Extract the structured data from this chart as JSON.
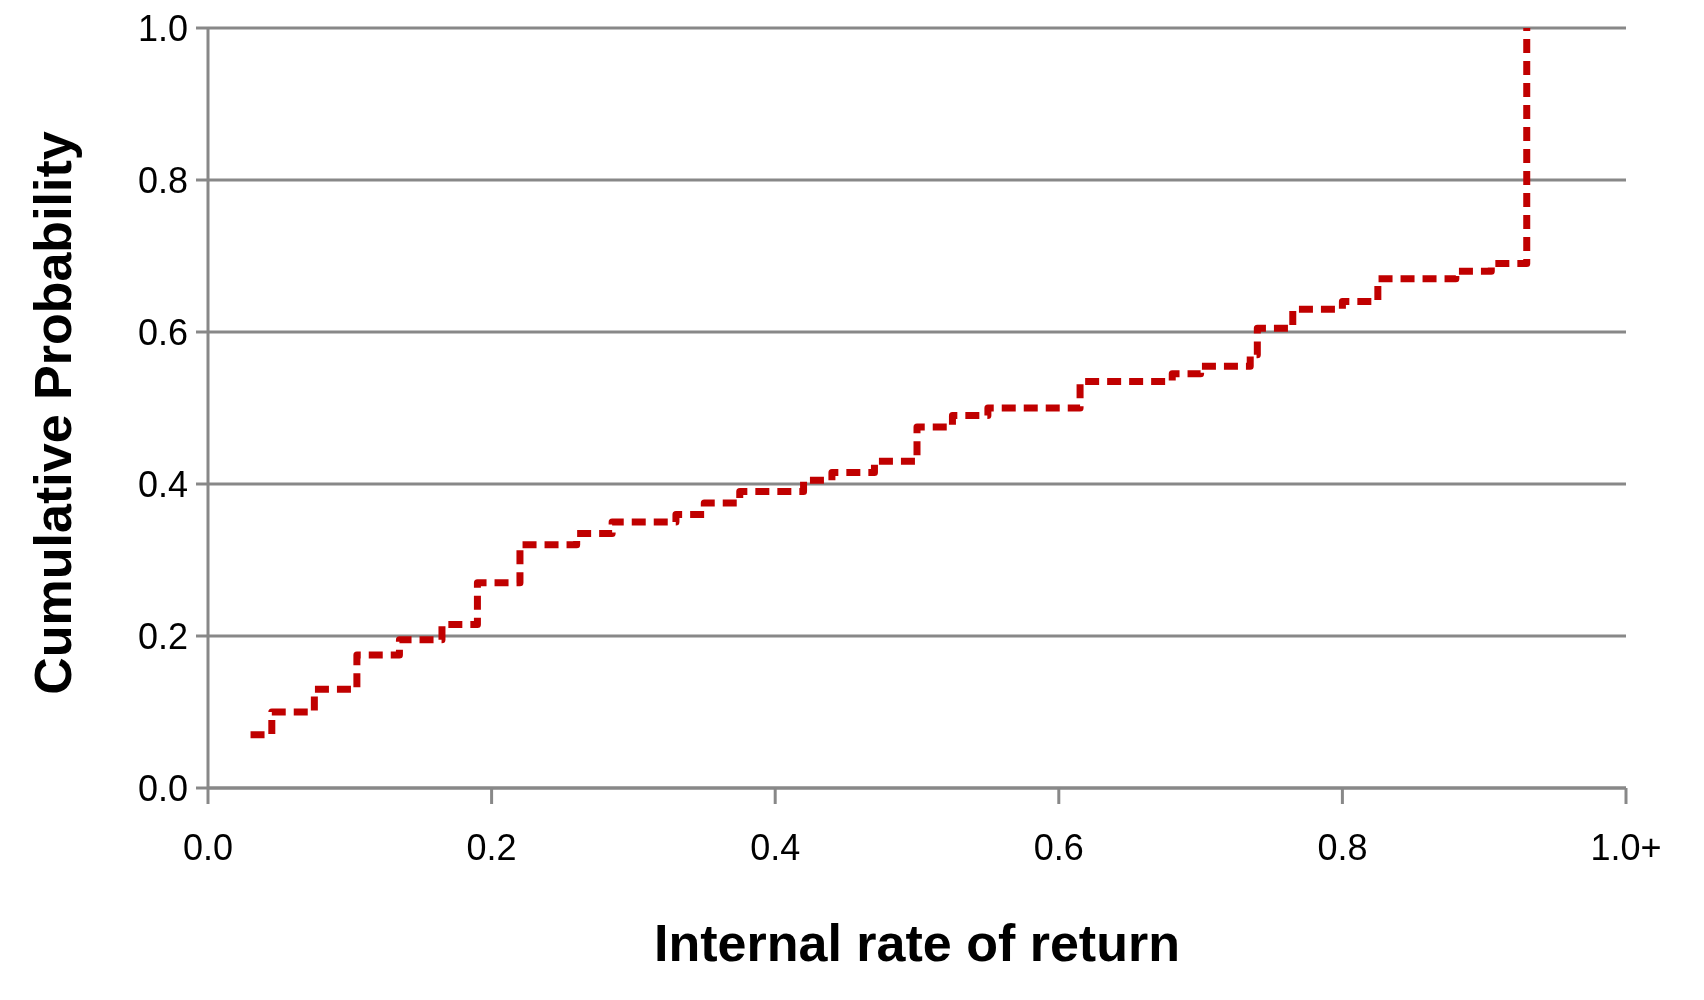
{
  "chart_data": {
    "type": "step",
    "xlabel": "Internal rate of return",
    "ylabel": "Cumulative Probability",
    "x": [
      0.03,
      0.045,
      0.075,
      0.105,
      0.135,
      0.165,
      0.19,
      0.22,
      0.26,
      0.285,
      0.33,
      0.35,
      0.375,
      0.42,
      0.44,
      0.47,
      0.5,
      0.525,
      0.55,
      0.615,
      0.68,
      0.7,
      0.735,
      0.74,
      0.765,
      0.8,
      0.825,
      0.88,
      0.905,
      0.93,
      0.93
    ],
    "series": [
      {
        "color": "#c00000",
        "values": [
          0.07,
          0.1,
          0.13,
          0.175,
          0.195,
          0.215,
          0.27,
          0.32,
          0.335,
          0.35,
          0.36,
          0.375,
          0.39,
          0.405,
          0.415,
          0.43,
          0.475,
          0.49,
          0.5,
          0.535,
          0.545,
          0.555,
          0.57,
          0.605,
          0.63,
          0.64,
          0.67,
          0.68,
          0.69,
          0.7,
          1.0
        ]
      }
    ],
    "xlim": [
      0,
      1
    ],
    "xticks": [
      {
        "value": 0,
        "label": "0.0"
      },
      {
        "value": 0.2,
        "label": "0.2"
      },
      {
        "value": 0.4,
        "label": "0.4"
      },
      {
        "value": 0.6,
        "label": "0.6"
      },
      {
        "value": 0.8,
        "label": "0.8"
      },
      {
        "value": 1,
        "label": "1.0+"
      }
    ],
    "ylim": [
      0,
      1
    ],
    "yticks": [
      {
        "value": 0,
        "label": "0.0"
      },
      {
        "value": 0.2,
        "label": "0.2"
      },
      {
        "value": 0.4,
        "label": "0.4"
      },
      {
        "value": 0.6,
        "label": "0.6"
      },
      {
        "value": 0.8,
        "label": "0.8"
      },
      {
        "value": 1,
        "label": "1.0"
      }
    ],
    "grid": "y",
    "line_style": "dashed",
    "marker": "none"
  }
}
